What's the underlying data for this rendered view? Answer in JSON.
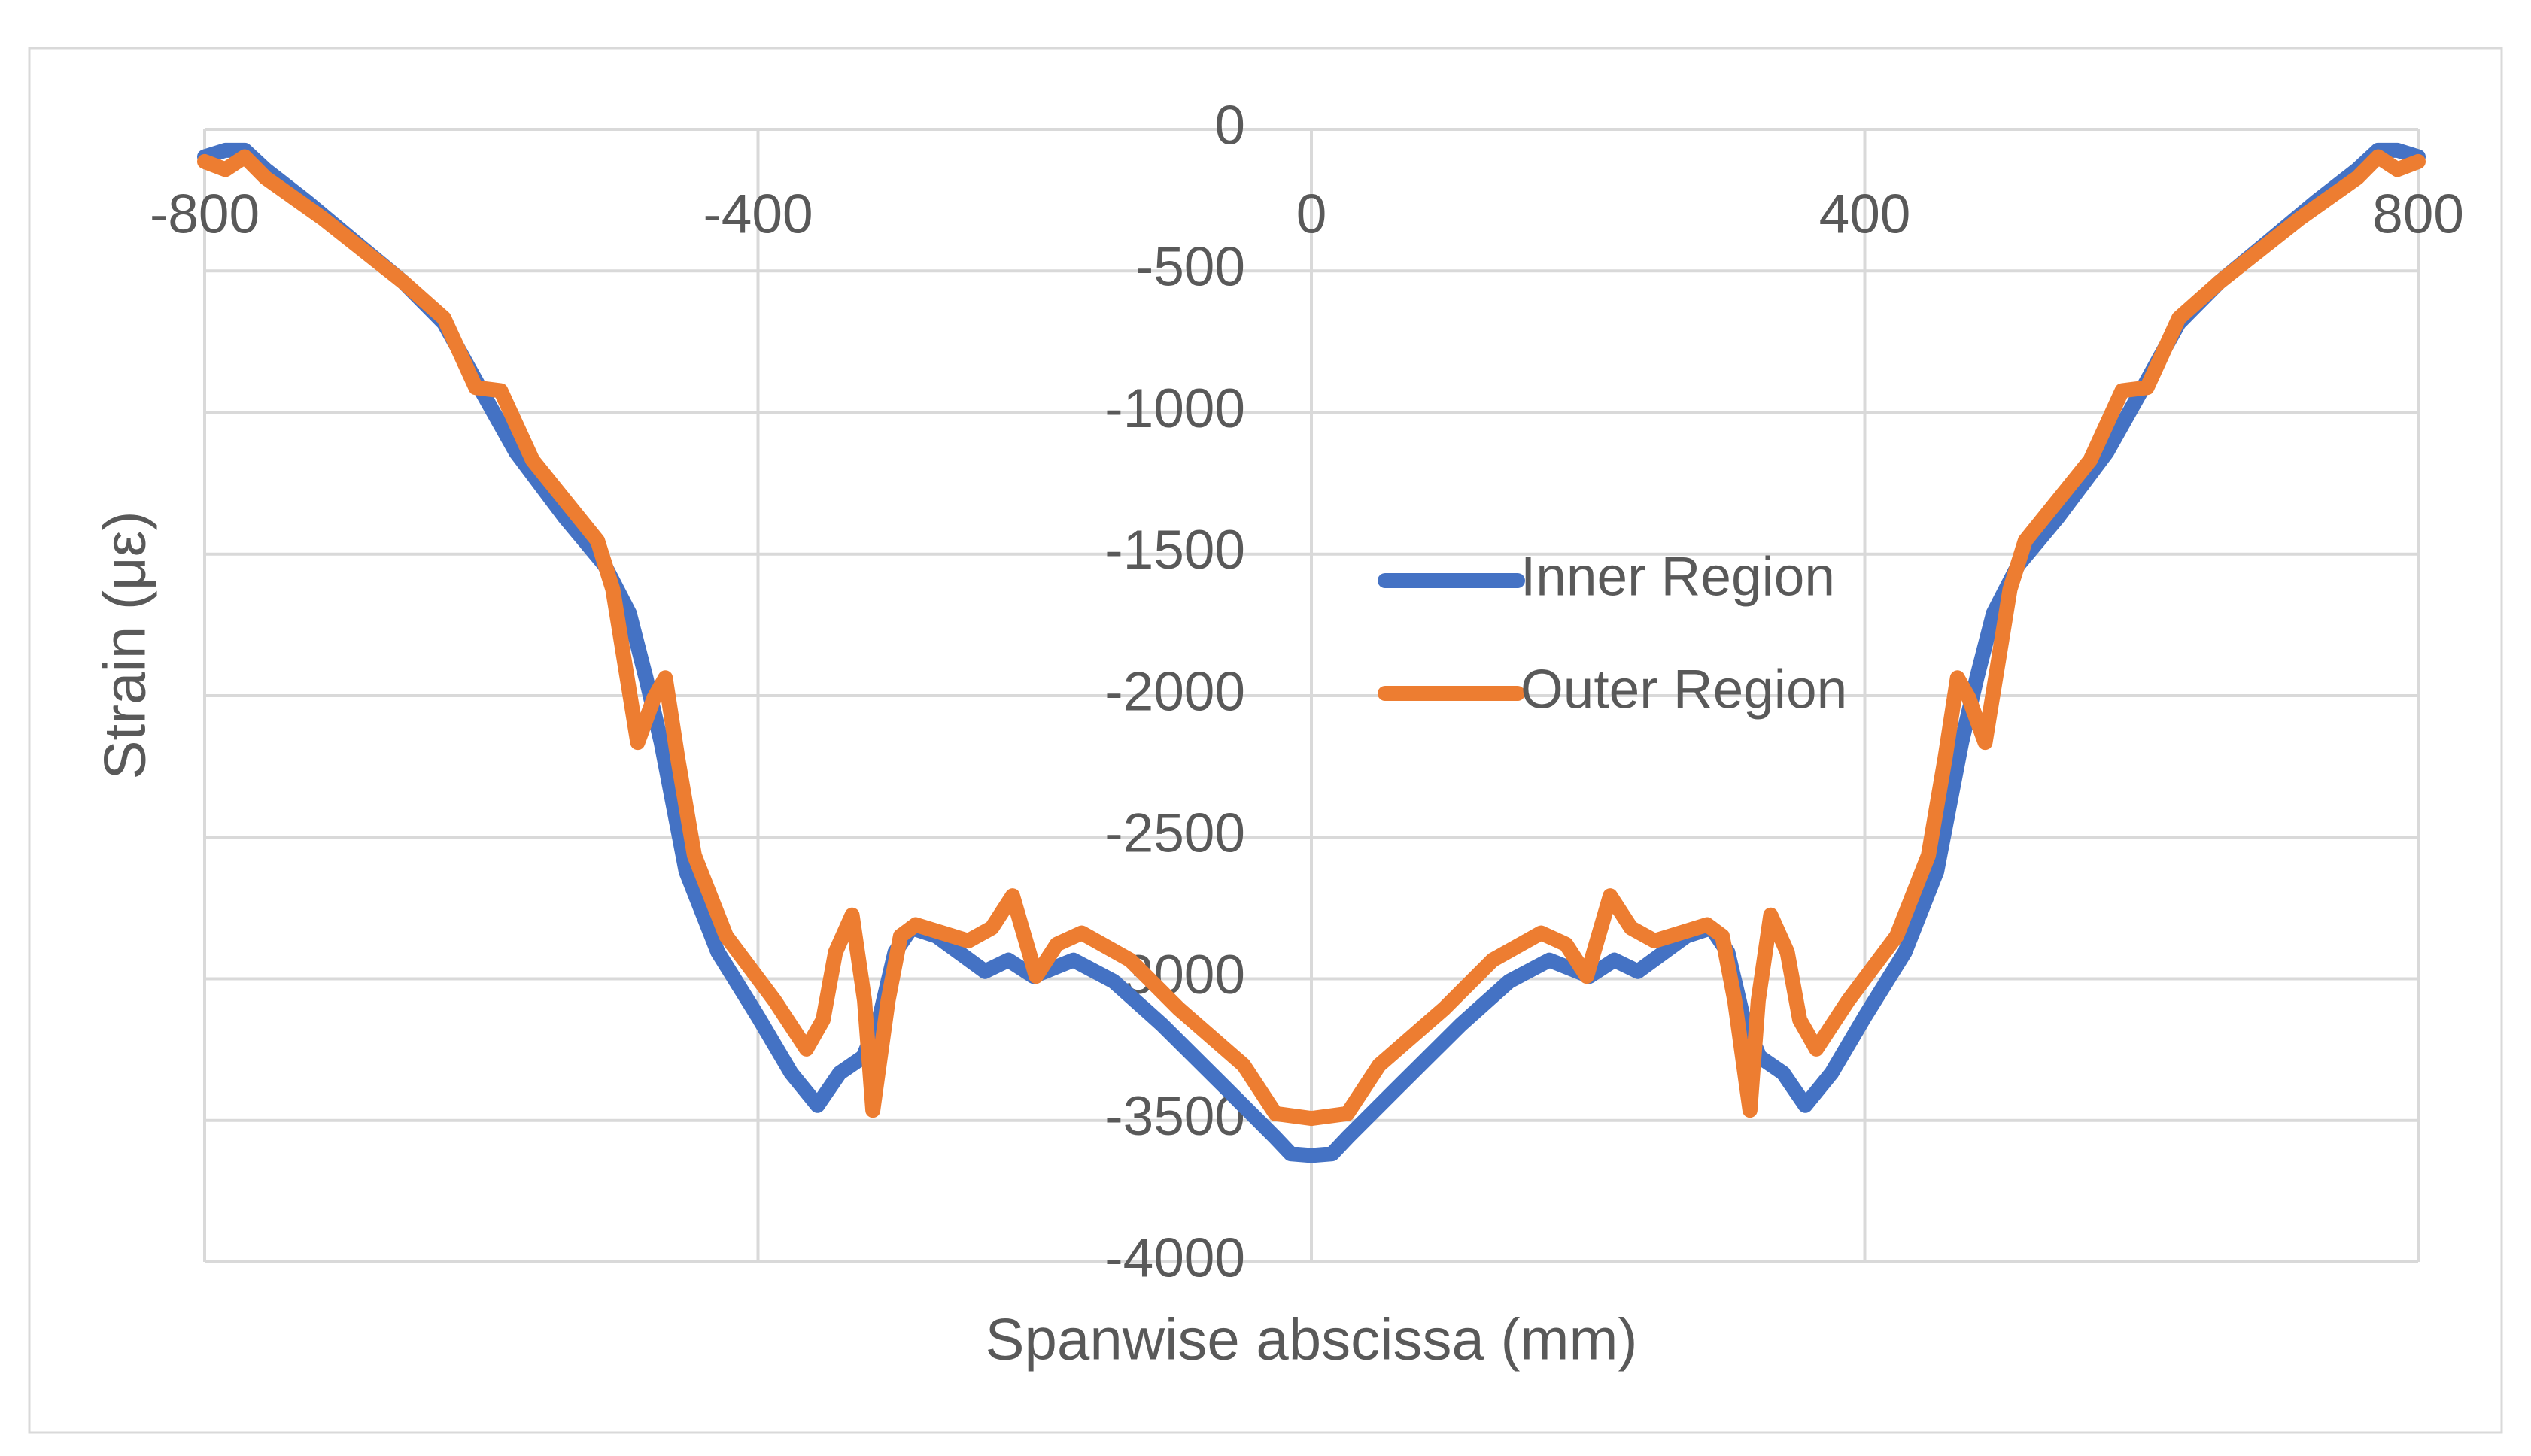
{
  "chart_data": {
    "type": "line",
    "x_label": "Spanwise abscissa (mm)",
    "y_label": "Strain (με)",
    "xlim": [
      -800,
      800
    ],
    "xticks": [
      -800,
      -400,
      0,
      400,
      800
    ],
    "ylim": [
      -4000,
      0
    ],
    "yticks": [
      0,
      -500,
      -1000,
      -1500,
      -2000,
      -2500,
      -3000,
      -3500,
      -4000
    ],
    "grid": true,
    "legend": "center",
    "series": [
      {
        "name": "Inner Region",
        "color": "#4472c4",
        "x": [
          -800,
          -785,
          -771,
          -756,
          -726,
          -691,
          -656,
          -627,
          -598,
          -575,
          -540,
          -511,
          -493,
          -481,
          -470,
          -452,
          -429,
          -400,
          -376,
          -357,
          -341,
          -324,
          -312,
          -301,
          -289,
          -271,
          -236,
          -219,
          -201,
          -172,
          -143,
          -108,
          -61,
          -26,
          -15,
          0,
          15,
          26,
          61,
          108,
          143,
          172,
          201,
          219,
          236,
          271,
          289,
          301,
          312,
          324,
          341,
          357,
          376,
          400,
          429,
          452,
          470,
          481,
          493,
          511,
          540,
          575,
          598,
          627,
          656,
          691,
          726,
          756,
          771,
          785,
          800
        ],
        "values": [
          -97,
          -74,
          -74,
          -142,
          -256,
          -399,
          -541,
          -684,
          -940,
          -1140,
          -1368,
          -1538,
          -1709,
          -1937,
          -2165,
          -2621,
          -2906,
          -3134,
          -3333,
          -3447,
          -3333,
          -3276,
          -3134,
          -2906,
          -2820,
          -2849,
          -2974,
          -2934,
          -2991,
          -2934,
          -3009,
          -3162,
          -3390,
          -3561,
          -3618,
          -3624,
          -3618,
          -3561,
          -3390,
          -3162,
          -3009,
          -2934,
          -2991,
          -2934,
          -2974,
          -2849,
          -2820,
          -2906,
          -3134,
          -3276,
          -3333,
          -3447,
          -3333,
          -3134,
          -2906,
          -2621,
          -2165,
          -1937,
          -1709,
          -1538,
          -1368,
          -1140,
          -940,
          -684,
          -541,
          -399,
          -256,
          -142,
          -74,
          -74,
          -97
        ]
      },
      {
        "name": "Outer Region",
        "color": "#ed7d31",
        "x": [
          -800,
          -785,
          -771,
          -756,
          -715,
          -656,
          -627,
          -604,
          -586,
          -563,
          -516,
          -505,
          -487,
          -475,
          -467,
          -458,
          -446,
          -423,
          -388,
          -365,
          -353,
          -344,
          -332,
          -323,
          -317,
          -306,
          -297,
          -286,
          -248,
          -231,
          -216,
          -199,
          -184,
          -166,
          -131,
          -96,
          -49,
          -26,
          0,
          26,
          49,
          96,
          131,
          166,
          184,
          199,
          216,
          231,
          248,
          286,
          297,
          306,
          317,
          323,
          332,
          344,
          353,
          365,
          388,
          423,
          446,
          458,
          467,
          475,
          487,
          505,
          516,
          563,
          586,
          604,
          627,
          656,
          715,
          756,
          771,
          785,
          800
        ],
        "values": [
          -114,
          -142,
          -97,
          -171,
          -313,
          -541,
          -667,
          -912,
          -923,
          -1168,
          -1453,
          -1624,
          -2165,
          -2006,
          -1937,
          -2222,
          -2564,
          -2849,
          -3077,
          -3248,
          -3145,
          -2906,
          -2775,
          -3077,
          -3464,
          -3077,
          -2849,
          -2809,
          -2866,
          -2820,
          -2707,
          -2991,
          -2878,
          -2838,
          -2934,
          -3105,
          -3305,
          -3476,
          -3493,
          -3476,
          -3305,
          -3105,
          -2934,
          -2838,
          -2878,
          -2991,
          -2707,
          -2820,
          -2866,
          -2809,
          -2849,
          -3077,
          -3464,
          -3077,
          -2775,
          -2906,
          -3145,
          -3248,
          -3077,
          -2849,
          -2564,
          -2222,
          -1937,
          -2006,
          -2165,
          -1624,
          -1453,
          -1168,
          -923,
          -912,
          -667,
          -541,
          -313,
          -171,
          -97,
          -142,
          -114
        ]
      }
    ]
  }
}
